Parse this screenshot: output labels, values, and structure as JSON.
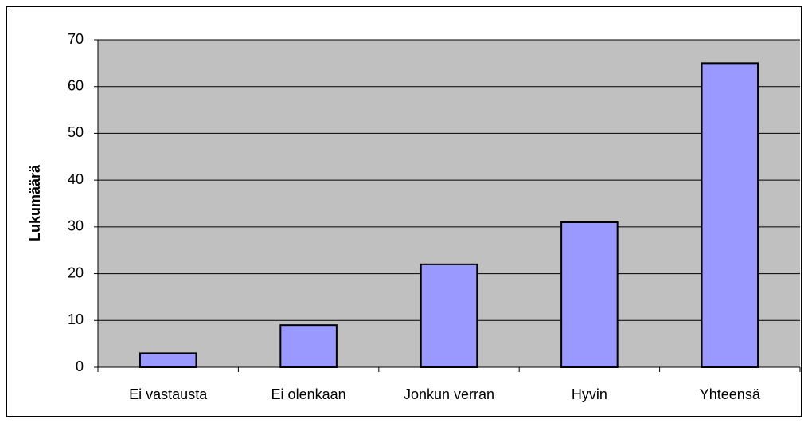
{
  "chart_data": {
    "type": "bar",
    "y_label": "Lukumäärä",
    "categories": [
      "Ei vastausta",
      "Ei olenkaan",
      "Jonkun verran",
      "Hyvin",
      "Yhteensä"
    ],
    "values": [
      3,
      9,
      22,
      31,
      65
    ],
    "color": "#9999ff",
    "ylim": [
      0,
      70
    ],
    "yticks": [
      0,
      10,
      20,
      30,
      40,
      50,
      60,
      70
    ],
    "grid": true
  }
}
